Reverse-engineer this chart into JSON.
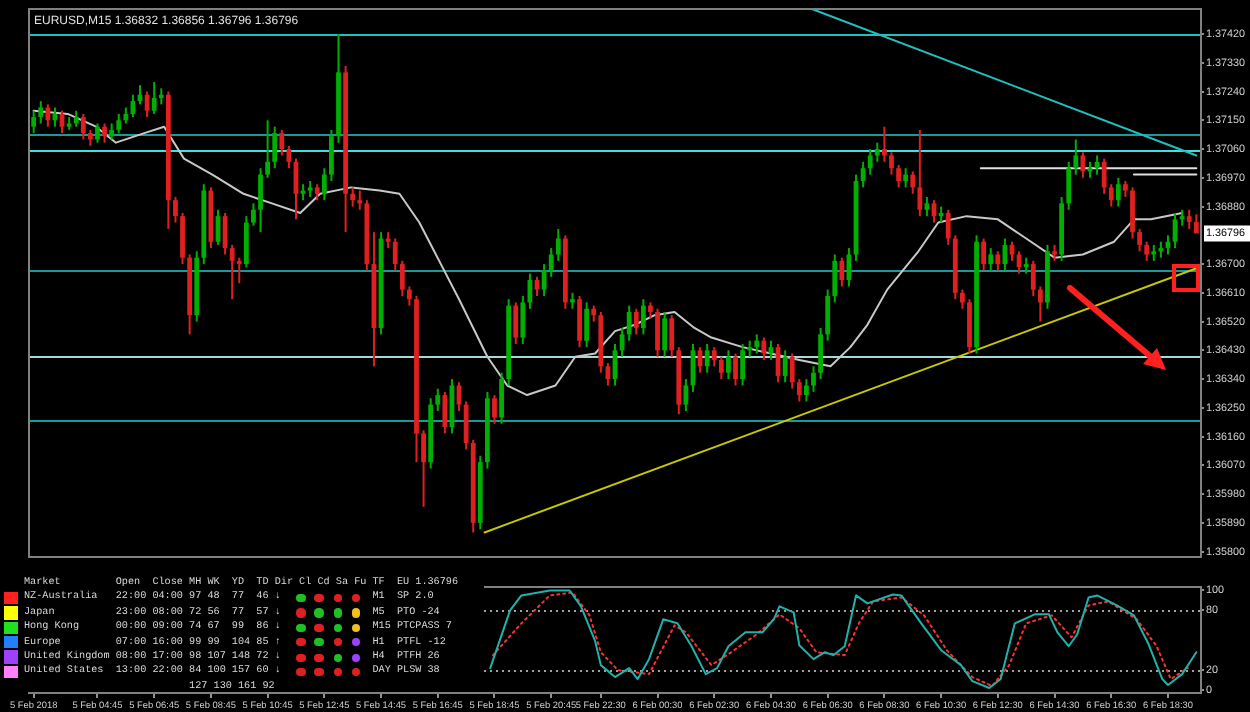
{
  "chart_data": [
    {
      "type": "candlestick",
      "title": "EURUSD,M15 1.36832 1.36856 1.36796 1.36796",
      "x": [
        "2018-02-05T02:30",
        "2018-02-05T02:45",
        "2018-02-05T03:00",
        "2018-02-05T03:15",
        "2018-02-05T03:30",
        "2018-02-05T03:45",
        "2018-02-05T04:00",
        "2018-02-05T04:15",
        "2018-02-05T04:30",
        "2018-02-05T04:45",
        "2018-02-05T05:00",
        "2018-02-05T05:15",
        "2018-02-05T05:30",
        "2018-02-05T05:45",
        "2018-02-05T06:00",
        "2018-02-05T06:15",
        "2018-02-05T06:30",
        "2018-02-05T06:45",
        "2018-02-05T07:00",
        "2018-02-05T07:15",
        "2018-02-05T07:30",
        "2018-02-05T07:45",
        "2018-02-05T08:00",
        "2018-02-05T08:15",
        "2018-02-05T08:30",
        "2018-02-05T08:45",
        "2018-02-05T09:00",
        "2018-02-05T09:15",
        "2018-02-05T09:30",
        "2018-02-05T09:45",
        "2018-02-05T10:00",
        "2018-02-05T10:15",
        "2018-02-05T10:30",
        "2018-02-05T10:45",
        "2018-02-05T11:00",
        "2018-02-05T11:15",
        "2018-02-05T11:30",
        "2018-02-05T11:45",
        "2018-02-05T12:00",
        "2018-02-05T12:15",
        "2018-02-05T12:30",
        "2018-02-05T12:45",
        "2018-02-05T13:00",
        "2018-02-05T13:15",
        "2018-02-05T13:30",
        "2018-02-05T13:45",
        "2018-02-05T14:00",
        "2018-02-05T14:15",
        "2018-02-05T14:30",
        "2018-02-05T14:45",
        "2018-02-05T15:00",
        "2018-02-05T15:15",
        "2018-02-05T15:30",
        "2018-02-05T15:45",
        "2018-02-05T16:00",
        "2018-02-05T16:15",
        "2018-02-05T16:30",
        "2018-02-05T16:45",
        "2018-02-05T17:00",
        "2018-02-05T17:15",
        "2018-02-05T17:30",
        "2018-02-05T17:45",
        "2018-02-05T18:00",
        "2018-02-05T18:15",
        "2018-02-05T18:30",
        "2018-02-05T18:45",
        "2018-02-05T19:00",
        "2018-02-05T19:15",
        "2018-02-05T19:30",
        "2018-02-05T19:45",
        "2018-02-05T20:00",
        "2018-02-05T20:15",
        "2018-02-05T20:30",
        "2018-02-05T20:45",
        "2018-02-05T21:00",
        "2018-02-05T21:15",
        "2018-02-05T21:30",
        "2018-02-05T21:45",
        "2018-02-05T22:00",
        "2018-02-05T22:15",
        "2018-02-05T22:30",
        "2018-02-05T22:45",
        "2018-02-05T23:00",
        "2018-02-05T23:15",
        "2018-02-05T23:30",
        "2018-02-05T23:45",
        "2018-02-06T00:00",
        "2018-02-06T00:15",
        "2018-02-06T00:30",
        "2018-02-06T00:45",
        "2018-02-06T01:00",
        "2018-02-06T01:15",
        "2018-02-06T01:30",
        "2018-02-06T01:45",
        "2018-02-06T02:00",
        "2018-02-06T02:15",
        "2018-02-06T02:30",
        "2018-02-06T02:45",
        "2018-02-06T03:00",
        "2018-02-06T03:15",
        "2018-02-06T03:30",
        "2018-02-06T03:45",
        "2018-02-06T04:00",
        "2018-02-06T04:15",
        "2018-02-06T04:30",
        "2018-02-06T04:45",
        "2018-02-06T05:00",
        "2018-02-06T05:15",
        "2018-02-06T05:30",
        "2018-02-06T05:45",
        "2018-02-06T06:00",
        "2018-02-06T06:15",
        "2018-02-06T06:30",
        "2018-02-06T06:45",
        "2018-02-06T07:00",
        "2018-02-06T07:15",
        "2018-02-06T07:30",
        "2018-02-06T07:45",
        "2018-02-06T08:00",
        "2018-02-06T08:15",
        "2018-02-06T08:30",
        "2018-02-06T08:45",
        "2018-02-06T09:00",
        "2018-02-06T09:15",
        "2018-02-06T09:30",
        "2018-02-06T09:45",
        "2018-02-06T10:00",
        "2018-02-06T10:15",
        "2018-02-06T10:30",
        "2018-02-06T10:45",
        "2018-02-06T11:00",
        "2018-02-06T11:15",
        "2018-02-06T11:30",
        "2018-02-06T11:45",
        "2018-02-06T12:00",
        "2018-02-06T12:15",
        "2018-02-06T12:30",
        "2018-02-06T12:45",
        "2018-02-06T13:00",
        "2018-02-06T13:15",
        "2018-02-06T13:30",
        "2018-02-06T13:45",
        "2018-02-06T14:00",
        "2018-02-06T14:15",
        "2018-02-06T14:30",
        "2018-02-06T14:45",
        "2018-02-06T15:00",
        "2018-02-06T15:15",
        "2018-02-06T15:30",
        "2018-02-06T15:45",
        "2018-02-06T16:00",
        "2018-02-06T16:15",
        "2018-02-06T16:30",
        "2018-02-06T16:45",
        "2018-02-06T17:00",
        "2018-02-06T17:15",
        "2018-02-06T17:30",
        "2018-02-06T17:45",
        "2018-02-06T18:00",
        "2018-02-06T18:15",
        "2018-02-06T18:30",
        "2018-02-06T18:45",
        "2018-02-06T19:00",
        "2018-02-06T19:15",
        "2018-02-06T19:30"
      ],
      "ohlc": [
        [
          1.3713,
          1.3718,
          1.3711,
          1.3716
        ],
        [
          1.3716,
          1.3721,
          1.3714,
          1.3719
        ],
        [
          1.3719,
          1.372,
          1.3713,
          1.3715
        ],
        [
          1.3715,
          1.3719,
          1.3713,
          1.3717
        ],
        [
          1.3717,
          1.3718,
          1.3711,
          1.3713
        ],
        [
          1.3713,
          1.3716,
          1.3712,
          1.3714
        ],
        [
          1.3714,
          1.3718,
          1.3713,
          1.3716
        ],
        [
          1.3716,
          1.3717,
          1.3709,
          1.3711
        ],
        [
          1.3711,
          1.3712,
          1.3707,
          1.3709
        ],
        [
          1.3709,
          1.3714,
          1.3708,
          1.3713
        ],
        [
          1.3713,
          1.3714,
          1.3708,
          1.371
        ],
        [
          1.371,
          1.3714,
          1.3709,
          1.3712
        ],
        [
          1.3712,
          1.3717,
          1.3711,
          1.3715
        ],
        [
          1.3715,
          1.3719,
          1.3714,
          1.3717
        ],
        [
          1.3717,
          1.3723,
          1.3716,
          1.3721
        ],
        [
          1.3721,
          1.3726,
          1.372,
          1.3723
        ],
        [
          1.3723,
          1.3724,
          1.3716,
          1.3718
        ],
        [
          1.3718,
          1.3727,
          1.3717,
          1.3722
        ],
        [
          1.3722,
          1.3725,
          1.372,
          1.3723
        ],
        [
          1.3723,
          1.3724,
          1.3681,
          1.369
        ],
        [
          1.369,
          1.3691,
          1.3683,
          1.3685
        ],
        [
          1.3685,
          1.3686,
          1.367,
          1.3672
        ],
        [
          1.3672,
          1.3673,
          1.3648,
          1.3654
        ],
        [
          1.3654,
          1.3674,
          1.3652,
          1.3672
        ],
        [
          1.3672,
          1.3695,
          1.367,
          1.3693
        ],
        [
          1.3693,
          1.3694,
          1.3675,
          1.3677
        ],
        [
          1.3677,
          1.3687,
          1.3676,
          1.3685
        ],
        [
          1.3685,
          1.3686,
          1.3673,
          1.3675
        ],
        [
          1.3675,
          1.3676,
          1.3659,
          1.3671
        ],
        [
          1.3671,
          1.3672,
          1.3664,
          1.367
        ],
        [
          1.367,
          1.3685,
          1.3669,
          1.3683
        ],
        [
          1.3683,
          1.3689,
          1.3682,
          1.3687
        ],
        [
          1.3687,
          1.37,
          1.368,
          1.3698
        ],
        [
          1.3698,
          1.3715,
          1.3697,
          1.3702
        ],
        [
          1.3702,
          1.3713,
          1.37,
          1.3711
        ],
        [
          1.3711,
          1.3712,
          1.3704,
          1.3706
        ],
        [
          1.3706,
          1.3707,
          1.37,
          1.3702
        ],
        [
          1.3702,
          1.3703,
          1.3684,
          1.3692
        ],
        [
          1.3692,
          1.3695,
          1.369,
          1.3693
        ],
        [
          1.3693,
          1.3696,
          1.3691,
          1.3694
        ],
        [
          1.3694,
          1.3695,
          1.369,
          1.3692
        ],
        [
          1.3692,
          1.37,
          1.369,
          1.3698
        ],
        [
          1.3698,
          1.3712,
          1.3696,
          1.371
        ],
        [
          1.371,
          1.3742,
          1.3708,
          1.373
        ],
        [
          1.373,
          1.3732,
          1.368,
          1.3692
        ],
        [
          1.3692,
          1.3694,
          1.3688,
          1.369
        ],
        [
          1.369,
          1.3693,
          1.3687,
          1.3689
        ],
        [
          1.3689,
          1.369,
          1.3668,
          1.367
        ],
        [
          1.367,
          1.368,
          1.3638,
          1.365
        ],
        [
          1.365,
          1.368,
          1.3648,
          1.3678
        ],
        [
          1.3678,
          1.368,
          1.3675,
          1.3677
        ],
        [
          1.3677,
          1.3678,
          1.3668,
          1.367
        ],
        [
          1.367,
          1.3671,
          1.366,
          1.3662
        ],
        [
          1.3662,
          1.3663,
          1.3657,
          1.3659
        ],
        [
          1.3659,
          1.366,
          1.3608,
          1.3617
        ],
        [
          1.3617,
          1.3618,
          1.3594,
          1.3608
        ],
        [
          1.3608,
          1.3628,
          1.3606,
          1.3626
        ],
        [
          1.3626,
          1.3631,
          1.3624,
          1.3629
        ],
        [
          1.3629,
          1.363,
          1.3617,
          1.3619
        ],
        [
          1.3619,
          1.3634,
          1.3617,
          1.3632
        ],
        [
          1.3632,
          1.3633,
          1.3624,
          1.3626
        ],
        [
          1.3626,
          1.3627,
          1.3612,
          1.3614
        ],
        [
          1.3614,
          1.3615,
          1.3586,
          1.3589
        ],
        [
          1.3589,
          1.361,
          1.3587,
          1.3608
        ],
        [
          1.3608,
          1.363,
          1.3606,
          1.3628
        ],
        [
          1.3628,
          1.3629,
          1.362,
          1.3622
        ],
        [
          1.3622,
          1.3636,
          1.362,
          1.3634
        ],
        [
          1.3634,
          1.3659,
          1.3632,
          1.3657
        ],
        [
          1.3657,
          1.3658,
          1.3645,
          1.3647
        ],
        [
          1.3647,
          1.366,
          1.3645,
          1.3658
        ],
        [
          1.3658,
          1.3667,
          1.3656,
          1.3665
        ],
        [
          1.3665,
          1.3666,
          1.366,
          1.3662
        ],
        [
          1.3662,
          1.367,
          1.366,
          1.3668
        ],
        [
          1.3668,
          1.3675,
          1.3666,
          1.3673
        ],
        [
          1.3673,
          1.3681,
          1.3671,
          1.3678
        ],
        [
          1.3678,
          1.3679,
          1.3656,
          1.3658
        ],
        [
          1.3658,
          1.3661,
          1.3656,
          1.3659
        ],
        [
          1.3659,
          1.366,
          1.3644,
          1.3646
        ],
        [
          1.3646,
          1.3658,
          1.3644,
          1.3656
        ],
        [
          1.3656,
          1.3657,
          1.3652,
          1.3654
        ],
        [
          1.3654,
          1.3655,
          1.3636,
          1.3638
        ],
        [
          1.3638,
          1.3639,
          1.3632,
          1.3634
        ],
        [
          1.3634,
          1.3645,
          1.3632,
          1.3643
        ],
        [
          1.3643,
          1.365,
          1.3641,
          1.3648
        ],
        [
          1.3648,
          1.3657,
          1.3646,
          1.3655
        ],
        [
          1.3655,
          1.3656,
          1.3648,
          1.365
        ],
        [
          1.365,
          1.3659,
          1.3648,
          1.3657
        ],
        [
          1.3657,
          1.3658,
          1.3653,
          1.3655
        ],
        [
          1.3655,
          1.3656,
          1.3641,
          1.3643
        ],
        [
          1.3643,
          1.3655,
          1.3641,
          1.3653
        ],
        [
          1.3653,
          1.3654,
          1.3641,
          1.3643
        ],
        [
          1.3643,
          1.3644,
          1.3623,
          1.3626
        ],
        [
          1.3626,
          1.3634,
          1.3624,
          1.3632
        ],
        [
          1.3632,
          1.3645,
          1.363,
          1.3643
        ],
        [
          1.3643,
          1.3644,
          1.3636,
          1.3638
        ],
        [
          1.3638,
          1.3645,
          1.3636,
          1.3643
        ],
        [
          1.3643,
          1.3644,
          1.3638,
          1.364
        ],
        [
          1.364,
          1.3641,
          1.3634,
          1.3636
        ],
        [
          1.3636,
          1.3643,
          1.3634,
          1.3641
        ],
        [
          1.3641,
          1.3642,
          1.3632,
          1.3634
        ],
        [
          1.3634,
          1.3645,
          1.3632,
          1.3643
        ],
        [
          1.3643,
          1.3646,
          1.3641,
          1.3644
        ],
        [
          1.3644,
          1.3648,
          1.3642,
          1.3646
        ],
        [
          1.3646,
          1.3647,
          1.364,
          1.3642
        ],
        [
          1.3642,
          1.3646,
          1.364,
          1.3644
        ],
        [
          1.3644,
          1.3645,
          1.3633,
          1.3635
        ],
        [
          1.3635,
          1.3643,
          1.3633,
          1.3641
        ],
        [
          1.3641,
          1.3642,
          1.3631,
          1.3633
        ],
        [
          1.3633,
          1.3634,
          1.3627,
          1.3629
        ],
        [
          1.3629,
          1.3634,
          1.3627,
          1.3632
        ],
        [
          1.3632,
          1.3638,
          1.363,
          1.3636
        ],
        [
          1.3636,
          1.365,
          1.3634,
          1.3648
        ],
        [
          1.3648,
          1.3662,
          1.3646,
          1.366
        ],
        [
          1.366,
          1.3673,
          1.3658,
          1.3671
        ],
        [
          1.3671,
          1.3672,
          1.3663,
          1.3665
        ],
        [
          1.3665,
          1.3675,
          1.3663,
          1.3673
        ],
        [
          1.3673,
          1.3698,
          1.3671,
          1.3696
        ],
        [
          1.3696,
          1.3702,
          1.3694,
          1.37
        ],
        [
          1.37,
          1.3706,
          1.3698,
          1.3704
        ],
        [
          1.3704,
          1.3708,
          1.3702,
          1.3706
        ],
        [
          1.3706,
          1.3713,
          1.3702,
          1.3704
        ],
        [
          1.3704,
          1.3705,
          1.3698,
          1.37
        ],
        [
          1.37,
          1.3701,
          1.3694,
          1.3696
        ],
        [
          1.3696,
          1.37,
          1.3694,
          1.3698
        ],
        [
          1.3698,
          1.3699,
          1.3692,
          1.3694
        ],
        [
          1.3694,
          1.3712,
          1.3685,
          1.3687
        ],
        [
          1.3687,
          1.3691,
          1.3685,
          1.3689
        ],
        [
          1.3689,
          1.369,
          1.3683,
          1.3685
        ],
        [
          1.3685,
          1.3688,
          1.3683,
          1.3686
        ],
        [
          1.3686,
          1.3687,
          1.3676,
          1.3678
        ],
        [
          1.3678,
          1.3679,
          1.3659,
          1.3661
        ],
        [
          1.3661,
          1.3662,
          1.3656,
          1.3658
        ],
        [
          1.3658,
          1.3659,
          1.3642,
          1.3644
        ],
        [
          1.3644,
          1.3679,
          1.3642,
          1.3677
        ],
        [
          1.3677,
          1.3678,
          1.3668,
          1.367
        ],
        [
          1.367,
          1.3675,
          1.3668,
          1.3673
        ],
        [
          1.3673,
          1.3674,
          1.3668,
          1.367
        ],
        [
          1.367,
          1.3678,
          1.3668,
          1.3676
        ],
        [
          1.3676,
          1.3677,
          1.3671,
          1.3673
        ],
        [
          1.3673,
          1.3674,
          1.3667,
          1.3669
        ],
        [
          1.3669,
          1.3672,
          1.3667,
          1.367
        ],
        [
          1.367,
          1.3671,
          1.366,
          1.3662
        ],
        [
          1.3662,
          1.3663,
          1.3652,
          1.3658
        ],
        [
          1.3658,
          1.3676,
          1.3656,
          1.3674
        ],
        [
          1.3674,
          1.3676,
          1.3671,
          1.3673
        ],
        [
          1.3673,
          1.3691,
          1.3671,
          1.3689
        ],
        [
          1.3689,
          1.3702,
          1.3687,
          1.37
        ],
        [
          1.37,
          1.3709,
          1.3698,
          1.3704
        ],
        [
          1.3704,
          1.3705,
          1.3697,
          1.3699
        ],
        [
          1.3699,
          1.3702,
          1.3697,
          1.37
        ],
        [
          1.37,
          1.3704,
          1.3698,
          1.3702
        ],
        [
          1.3702,
          1.3703,
          1.3692,
          1.3694
        ],
        [
          1.3694,
          1.3695,
          1.3688,
          1.369
        ],
        [
          1.369,
          1.3697,
          1.3688,
          1.3695
        ],
        [
          1.3695,
          1.3696,
          1.3691,
          1.3693
        ],
        [
          1.3693,
          1.3694,
          1.3678,
          1.368
        ],
        [
          1.368,
          1.3681,
          1.3674,
          1.3676
        ],
        [
          1.3676,
          1.3677,
          1.3671,
          1.3673
        ],
        [
          1.3673,
          1.3676,
          1.3671,
          1.3674
        ],
        [
          1.3674,
          1.3677,
          1.3672,
          1.3675
        ],
        [
          1.3675,
          1.3679,
          1.3673,
          1.3677
        ],
        [
          1.3677,
          1.3686,
          1.3675,
          1.3684
        ],
        [
          1.3684,
          1.3687,
          1.3682,
          1.3685
        ],
        [
          1.3685,
          1.3687,
          1.3681,
          1.36832
        ],
        [
          1.36832,
          1.36856,
          1.36796,
          1.36796
        ]
      ],
      "series": [
        {
          "type": "line",
          "color": "#c8c8c8",
          "x": [
            "2018-02-05T02:30",
            "2018-02-05T03:42",
            "2018-02-05T04:42",
            "2018-02-05T05:24",
            "2018-02-05T06:24",
            "2018-02-05T07:06",
            "2018-02-05T07:48",
            "2018-02-05T08:48",
            "2018-02-05T09:54",
            "2018-02-05T10:54",
            "2018-02-05T11:54",
            "2018-02-05T12:36",
            "2018-02-05T13:42",
            "2018-02-05T14:42",
            "2018-02-05T15:24",
            "2018-02-05T16:06",
            "2018-02-05T16:48",
            "2018-02-05T17:30",
            "2018-02-05T18:30",
            "2018-02-05T19:12",
            "2018-02-05T19:54",
            "2018-02-05T20:54",
            "2018-02-05T21:36",
            "2018-02-05T22:18",
            "2018-02-05T23:00",
            "2018-02-05T23:42",
            "2018-02-06T00:24",
            "2018-02-06T01:06",
            "2018-02-06T01:48",
            "2018-02-06T02:24",
            "2018-02-06T03:30",
            "2018-02-06T04:30",
            "2018-02-06T05:30",
            "2018-02-06T06:36",
            "2018-02-06T07:18",
            "2018-02-06T07:54",
            "2018-02-06T08:36",
            "2018-02-06T09:42",
            "2018-02-06T10:24",
            "2018-02-06T11:24",
            "2018-02-06T12:30",
            "2018-02-06T13:30",
            "2018-02-06T14:30",
            "2018-02-06T15:30",
            "2018-02-06T16:36",
            "2018-02-06T17:18",
            "2018-02-06T17:54",
            "2018-02-06T19:00"
          ],
          "values": [
            1.3718,
            1.3717,
            1.3713,
            1.3708,
            1.3711,
            1.3713,
            1.3703,
            1.3698,
            1.3692,
            1.3689,
            1.3686,
            1.3692,
            1.3694,
            1.3693,
            1.3692,
            1.3683,
            1.3671,
            1.3659,
            1.3641,
            1.3632,
            1.3629,
            1.3632,
            1.3641,
            1.3642,
            1.3649,
            1.3651,
            1.3654,
            1.3655,
            1.365,
            1.3647,
            1.3644,
            1.3642,
            1.364,
            1.3638,
            1.3644,
            1.3651,
            1.3662,
            1.3674,
            1.3683,
            1.3685,
            1.3684,
            1.3678,
            1.3672,
            1.3673,
            1.3677,
            1.3684,
            1.3684,
            1.3686
          ]
        },
        {
          "type": "line",
          "color": "#c8c800",
          "x": [
            "2018-02-05T18:24",
            "2018-02-06T19:36"
          ],
          "values": [
            1.3586,
            1.3669
          ]
        },
        {
          "type": "line",
          "color": "#20c0c0",
          "x": [
            "2018-02-06T05:54",
            "2018-02-06T19:30"
          ],
          "values": [
            1.375,
            1.3704
          ]
        },
        {
          "type": "line",
          "color": "#e0e0e0",
          "x": [
            "2018-02-06T11:54",
            "2018-02-06T19:30"
          ],
          "values": [
            1.37,
            1.37
          ]
        },
        {
          "type": "line",
          "color": "#e0e0e0",
          "x": [
            "2018-02-06T17:18",
            "2018-02-06T19:30"
          ],
          "values": [
            1.3698,
            1.3698
          ]
        }
      ],
      "xlim": [
        "2018-02-05T02:18",
        "2018-02-06T19:42"
      ],
      "ylim": [
        1.3578,
        1.375
      ],
      "yticks": [
        {
          "value": 1.3742,
          "label": "1.37420"
        },
        {
          "value": 1.3733,
          "label": "1.37330"
        },
        {
          "value": 1.3724,
          "label": "1.37240"
        },
        {
          "value": 1.3715,
          "label": "1.37150"
        },
        {
          "value": 1.3706,
          "label": "1.37060"
        },
        {
          "value": 1.3697,
          "label": "1.36970"
        },
        {
          "value": 1.3688,
          "label": "1.36880"
        },
        {
          "value": 1.367,
          "label": "1.36700"
        },
        {
          "value": 1.3661,
          "label": "1.36610"
        },
        {
          "value": 1.3652,
          "label": "1.36520"
        },
        {
          "value": 1.3643,
          "label": "1.36430"
        },
        {
          "value": 1.3634,
          "label": "1.36340"
        },
        {
          "value": 1.3625,
          "label": "1.36250"
        },
        {
          "value": 1.3616,
          "label": "1.36160"
        },
        {
          "value": 1.3607,
          "label": "1.36070"
        },
        {
          "value": 1.3598,
          "label": "1.35980"
        },
        {
          "value": 1.3589,
          "label": "1.35890"
        },
        {
          "value": 1.358,
          "label": "1.35800"
        }
      ],
      "ref_lines": [
        {
          "axis": "y",
          "value": 1.3742,
          "color": "#20c0c0"
        },
        {
          "axis": "y",
          "value": 1.3711,
          "color": "#199a9a"
        },
        {
          "axis": "y",
          "value": 1.3706,
          "color": "#40e0e0"
        },
        {
          "axis": "y",
          "value": 1.3668,
          "color": "#199a9a"
        },
        {
          "axis": "y",
          "value": 1.3641,
          "color": "#a8d8d8"
        },
        {
          "axis": "y",
          "value": 1.3621,
          "color": "#199a9a"
        }
      ],
      "annotations": [
        {
          "text": "1.36796",
          "y": 1.36796
        }
      ],
      "tick_labels": "y"
    },
    {
      "type": "line",
      "series": [
        {
          "color": "#20b2aa",
          "x": [
            "2018-02-05T18:36",
            "2018-02-05T19:18",
            "2018-02-05T19:42",
            "2018-02-05T20:42",
            "2018-02-05T21:24",
            "2018-02-05T21:48",
            "2018-02-05T22:18",
            "2018-02-05T22:30",
            "2018-02-05T23:00",
            "2018-02-05T23:30",
            "2018-02-05T23:48",
            "2018-02-06T00:12",
            "2018-02-06T00:42",
            "2018-02-06T01:12",
            "2018-02-06T01:42",
            "2018-02-06T02:12",
            "2018-02-06T02:36",
            "2018-02-06T03:00",
            "2018-02-06T03:36",
            "2018-02-06T04:12",
            "2018-02-06T04:36",
            "2018-02-06T04:48",
            "2018-02-06T05:18",
            "2018-02-06T05:30",
            "2018-02-06T06:00",
            "2018-02-06T06:24",
            "2018-02-06T06:42",
            "2018-02-06T07:06",
            "2018-02-06T07:30",
            "2018-02-06T07:54",
            "2018-02-06T08:48",
            "2018-02-06T09:06",
            "2018-02-06T09:48",
            "2018-02-06T10:30",
            "2018-02-06T11:12",
            "2018-02-06T11:36",
            "2018-02-06T12:12",
            "2018-02-06T12:36",
            "2018-02-06T13:06",
            "2018-02-06T13:48",
            "2018-02-06T14:18",
            "2018-02-06T14:36",
            "2018-02-06T15:00",
            "2018-02-06T15:18",
            "2018-02-06T15:42",
            "2018-02-06T16:00",
            "2018-02-06T16:42",
            "2018-02-06T17:18",
            "2018-02-06T17:48",
            "2018-02-06T18:18",
            "2018-02-06T18:30",
            "2018-02-06T19:00",
            "2018-02-06T19:30"
          ],
          "values": [
            22,
            80,
            95,
            100,
            100,
            84,
            49,
            25,
            13,
            22,
            11,
            31,
            71,
            67,
            44,
            16,
            22,
            44,
            58,
            58,
            71,
            84,
            78,
            45,
            31,
            38,
            35,
            44,
            95,
            87,
            96,
            95,
            67,
            40,
            25,
            9,
            2,
            11,
            67,
            76,
            76,
            58,
            44,
            56,
            93,
            95,
            85,
            75,
            47,
            11,
            5,
            16,
            38
          ]
        },
        {
          "color": "#ff3030",
          "line_style": "dotted",
          "x": [
            "2018-02-05T18:42",
            "2018-02-05T19:42",
            "2018-02-05T20:42",
            "2018-02-05T21:30",
            "2018-02-05T22:06",
            "2018-02-05T22:30",
            "2018-02-05T23:06",
            "2018-02-06T00:12",
            "2018-02-06T01:06",
            "2018-02-06T01:30",
            "2018-02-06T02:24",
            "2018-02-06T03:06",
            "2018-02-06T04:00",
            "2018-02-06T04:48",
            "2018-02-06T05:30",
            "2018-02-06T06:06",
            "2018-02-06T07:06",
            "2018-02-06T07:36",
            "2018-02-06T08:06",
            "2018-02-06T09:06",
            "2018-02-06T09:54",
            "2018-02-06T10:42",
            "2018-02-06T11:36",
            "2018-02-06T12:18",
            "2018-02-06T12:54",
            "2018-02-06T13:30",
            "2018-02-06T14:24",
            "2018-02-06T15:06",
            "2018-02-06T15:42",
            "2018-02-06T16:24",
            "2018-02-06T17:24",
            "2018-02-06T18:06",
            "2018-02-06T18:36",
            "2018-02-06T19:12"
          ],
          "values": [
            35,
            67,
            95,
            98,
            75,
            38,
            20,
            16,
            65,
            58,
            25,
            38,
            56,
            76,
            62,
            38,
            35,
            67,
            89,
            93,
            75,
            40,
            13,
            4,
            25,
            67,
            75,
            53,
            85,
            89,
            71,
            44,
            11,
            22
          ]
        }
      ],
      "xlim": [
        "2018-02-05T02:18",
        "2018-02-06T19:42"
      ],
      "xticks": [
        {
          "value": "2018-02-05T02:30",
          "label": "5 Feb 2018"
        },
        {
          "value": "2018-02-05T04:45",
          "label": "5 Feb 04:45"
        },
        {
          "value": "2018-02-05T06:45",
          "label": "5 Feb 06:45"
        },
        {
          "value": "2018-02-05T08:45",
          "label": "5 Feb 08:45"
        },
        {
          "value": "2018-02-05T10:45",
          "label": "5 Feb 10:45"
        },
        {
          "value": "2018-02-05T12:45",
          "label": "5 Feb 12:45"
        },
        {
          "value": "2018-02-05T14:45",
          "label": "5 Feb 14:45"
        },
        {
          "value": "2018-02-05T16:45",
          "label": "5 Feb 16:45"
        },
        {
          "value": "2018-02-05T18:45",
          "label": "5 Feb 18:45"
        },
        {
          "value": "2018-02-05T20:45",
          "label": "5 Feb 20:45"
        },
        {
          "value": "2018-02-05T22:30",
          "label": "5 Feb 22:30"
        },
        {
          "value": "2018-02-06T00:30",
          "label": "6 Feb 00:30"
        },
        {
          "value": "2018-02-06T02:30",
          "label": "6 Feb 02:30"
        },
        {
          "value": "2018-02-06T04:30",
          "label": "6 Feb 04:30"
        },
        {
          "value": "2018-02-06T06:30",
          "label": "6 Feb 06:30"
        },
        {
          "value": "2018-02-06T08:30",
          "label": "6 Feb 08:30"
        },
        {
          "value": "2018-02-06T10:30",
          "label": "6 Feb 10:30"
        },
        {
          "value": "2018-02-06T12:30",
          "label": "6 Feb 12:30"
        },
        {
          "value": "2018-02-06T14:30",
          "label": "6 Feb 14:30"
        },
        {
          "value": "2018-02-06T16:30",
          "label": "6 Feb 16:30"
        },
        {
          "value": "2018-02-06T18:30",
          "label": "6 Feb 18:30"
        }
      ],
      "ylim": [
        -4,
        104
      ],
      "yticks": [
        0,
        20,
        80,
        100
      ],
      "ref_lines": [
        {
          "axis": "y",
          "value": 80,
          "color": "#a0a0a0",
          "line_style": "dotted"
        },
        {
          "axis": "y",
          "value": 20,
          "color": "#a0a0a0",
          "line_style": "dotted"
        }
      ]
    },
    {
      "type": "other",
      "annotations": [
        "Market         Open  Close MH WK  YD  TD Dir Cl Cd Sa Fu TF  EU 1.36796",
        "NZ-Australia   22:00 04:00 97 48  77  46 ↓               M1  SP 2.0",
        "Japan          23:00 08:00 72 56  77  57 ↓               M5  PTO -24",
        "Hong Kong      00:00 09:00 74 67  99  86 ↓               M15 PTCPASS 7",
        "Europe         07:00 16:00 99 99  104 85 ↑               H1  PTFL -12",
        "United Kingdom 08:00 17:00 98 107 148 72 ↓               H4  PTFH 26",
        "United States  13:00 22:00 84 100 157 60 ↓               DAY PLSW 38",
        "                           127 130 161 92"
      ]
    }
  ]
}
